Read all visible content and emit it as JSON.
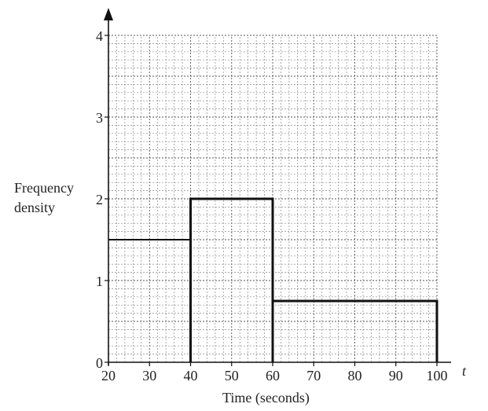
{
  "chart_data": {
    "type": "bar",
    "subtype": "histogram",
    "bins": [
      {
        "from": 20,
        "to": 40,
        "frequency_density": 1.5
      },
      {
        "from": 40,
        "to": 60,
        "frequency_density": 2
      },
      {
        "from": 60,
        "to": 100,
        "frequency_density": 0.75
      }
    ],
    "xlabel": "Time (seconds)",
    "x_var": "t",
    "ylabel_line1": "Frequency",
    "ylabel_line2": "density",
    "xlim": [
      20,
      100
    ],
    "ylim": [
      0,
      4
    ],
    "x_ticks": [
      "20",
      "30",
      "40",
      "50",
      "60",
      "70",
      "80",
      "90",
      "100"
    ],
    "y_ticks": [
      "0",
      "1",
      "2",
      "3",
      "4"
    ],
    "grid": true,
    "grid_minor_x": 2,
    "grid_minor_y": 0.1
  }
}
